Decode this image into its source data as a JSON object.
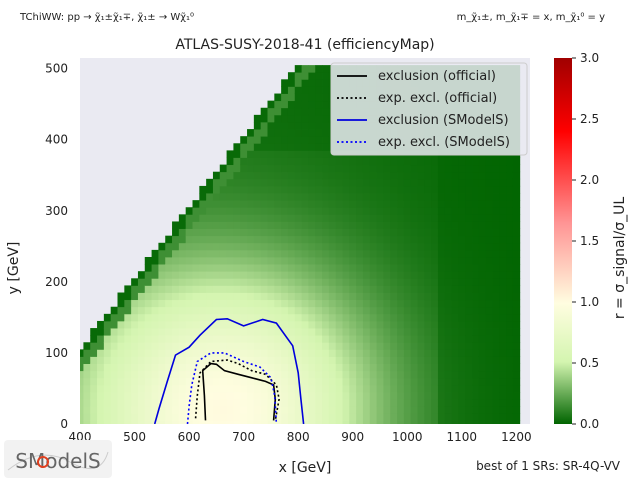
{
  "header": {
    "process_label": "TChiWW: pp → χ̃₁±χ̃₁∓, χ̃₁± → Wχ̃₁⁰",
    "mass_label": "m_χ̃₁±, m_χ̃₁∓ = x, m_χ̃₁⁰ = y"
  },
  "footer": {
    "best_sr": "best of 1 SRs: SR-4Q-VV",
    "logo_text": "SModelS"
  },
  "colors": {
    "background": "#eaeaf2",
    "official": "#000000",
    "smodels": "#0000dd"
  },
  "chart_data": {
    "type": "heatmap",
    "title": "ATLAS-SUSY-2018-41 (efficiencyMap)",
    "xlabel": "x [GeV]",
    "ylabel": "y [GeV]",
    "colorbar_label": "r = σ_signal/σ_UL",
    "xlim": [
      400,
      1225
    ],
    "ylim": [
      0,
      515
    ],
    "clim": [
      0,
      3
    ],
    "xticks": [
      400,
      500,
      600,
      700,
      800,
      900,
      1000,
      1100,
      1200
    ],
    "yticks": [
      0,
      100,
      200,
      300,
      400,
      500
    ],
    "cticks": [
      "0.0",
      "0.5",
      "1.0",
      "1.5",
      "2.0",
      "2.5",
      "3.0"
    ],
    "grid_x_range": [
      400,
      1200
    ],
    "grid_y_max": 505,
    "diagonal_offset": 295,
    "colormap": [
      "#006400",
      "#d4f5b0",
      "#fffde0",
      "#ff9494",
      "#ff0000",
      "#a00000"
    ],
    "colormap_stops": [
      0,
      0.17,
      0.33,
      0.55,
      0.8,
      1
    ],
    "peak": {
      "x": 665,
      "y": 20,
      "r": 0.95
    },
    "legend_position": "upper right",
    "series": [
      {
        "name": "exclusion (official)",
        "style": "solid",
        "color": "#000000",
        "points": [
          [
            630,
            5
          ],
          [
            628,
            40
          ],
          [
            625,
            75
          ],
          [
            640,
            85
          ],
          [
            650,
            84
          ],
          [
            665,
            75
          ],
          [
            690,
            70
          ],
          [
            715,
            65
          ],
          [
            740,
            60
          ],
          [
            755,
            55
          ],
          [
            758,
            35
          ],
          [
            755,
            5
          ]
        ]
      },
      {
        "name": "exp. excl. (official)",
        "style": "dotted",
        "color": "#000000",
        "points": [
          [
            612,
            8
          ],
          [
            615,
            40
          ],
          [
            620,
            72
          ],
          [
            640,
            88
          ],
          [
            670,
            90
          ],
          [
            690,
            85
          ],
          [
            715,
            75
          ],
          [
            740,
            70
          ],
          [
            760,
            55
          ],
          [
            765,
            35
          ],
          [
            758,
            5
          ]
        ]
      },
      {
        "name": "exclusion (SModelS)",
        "style": "solid",
        "color": "#0000dd",
        "points": [
          [
            537,
            0
          ],
          [
            545,
            22
          ],
          [
            560,
            60
          ],
          [
            575,
            97
          ],
          [
            600,
            108
          ],
          [
            620,
            125
          ],
          [
            650,
            147
          ],
          [
            670,
            148
          ],
          [
            700,
            138
          ],
          [
            735,
            147
          ],
          [
            760,
            142
          ],
          [
            790,
            110
          ],
          [
            800,
            72
          ],
          [
            805,
            35
          ],
          [
            810,
            0
          ]
        ]
      },
      {
        "name": "exp. excl. (SModelS)",
        "style": "dotted",
        "color": "#0000ff",
        "points": [
          [
            597,
            0
          ],
          [
            600,
            25
          ],
          [
            605,
            55
          ],
          [
            615,
            88
          ],
          [
            640,
            100
          ],
          [
            665,
            100
          ],
          [
            700,
            88
          ],
          [
            730,
            80
          ],
          [
            750,
            65
          ],
          [
            757,
            40
          ],
          [
            760,
            0
          ]
        ]
      }
    ]
  }
}
